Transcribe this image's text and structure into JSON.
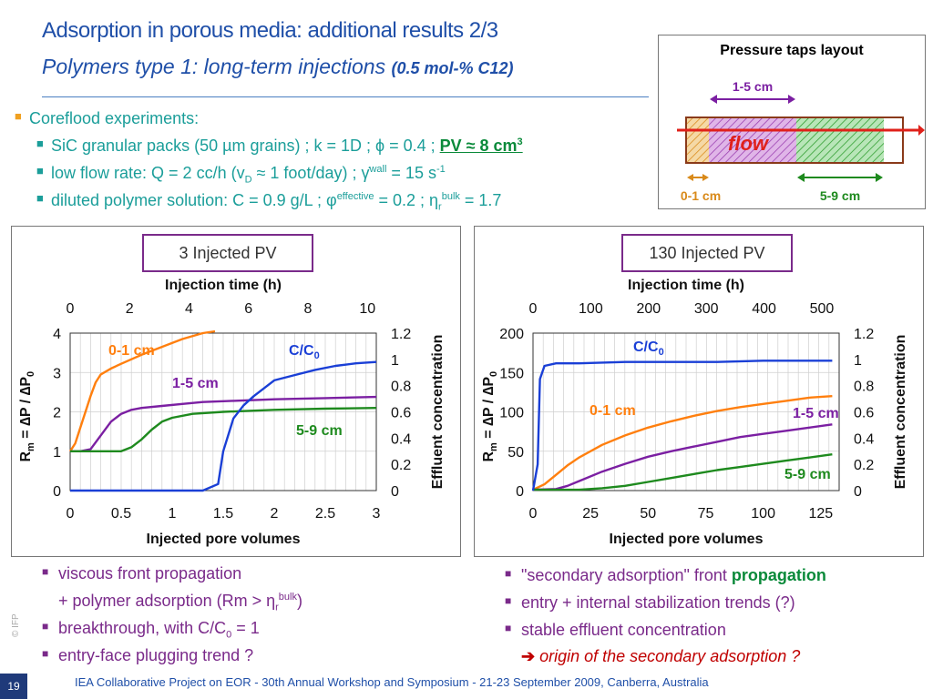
{
  "header": {
    "title": "Adsorption in porous media: additional results 2/3",
    "subtitle_main": "Polymers type 1: long-term injections ",
    "subtitle_small": "(0.5 mol-% C12)"
  },
  "bullets": {
    "b0": "Coreflood experiments:",
    "b1_pre": "SiC granular packs (50 µm grains) ; k = 1D ; ϕ = 0.4 ; ",
    "b1_pv": "PV ≈ 8 cm",
    "b1_pv_sup": "3",
    "b2_pre": "low flow rate: Q = 2 cc/h (v",
    "b2_sub": "D",
    "b2_mid": " ≈ 1 foot/day) ; γ̇",
    "b2_sup": "wall",
    "b2_post": " = 15 s",
    "b2_sup2": "-1",
    "b3_pre": "diluted polymer solution: C = 0.9 g/L ; φ",
    "b3_sup": "effective",
    "b3_mid": " = 0.2 ; η",
    "b3_sub": "r",
    "b3_sup2": "bulk",
    "b3_post": " = 1.7"
  },
  "pressure_taps": {
    "title": "Pressure taps layout",
    "label_top": "1-5 cm",
    "label_flow": "flow",
    "label_left": "0-1 cm",
    "label_right": "5-9 cm"
  },
  "chart_data": [
    {
      "type": "line",
      "panel_label": "3 Injected PV",
      "top_axis_title": "Injection time (h)",
      "top_ticks": [
        "0",
        "2",
        "4",
        "6",
        "8",
        "10"
      ],
      "top_range": [
        0,
        10.3
      ],
      "xlabel": "Injected pore volumes",
      "xlim": [
        0,
        3
      ],
      "xticks": [
        "0",
        "0.5",
        "1",
        "1.5",
        "2",
        "2.5",
        "3"
      ],
      "ylabel": "Rm = ΔP / ΔP0",
      "ylim": [
        0,
        4
      ],
      "yticks": [
        "0",
        "1",
        "2",
        "3",
        "4"
      ],
      "y2label": "Effluent concentration",
      "y2lim": [
        0,
        1.2
      ],
      "y2ticks": [
        "0",
        "0.2",
        "0.4",
        "0.6",
        "0.8",
        "1",
        "1.2"
      ],
      "grid": true,
      "series": [
        {
          "name": "0-1 cm",
          "color": "#ff7f0e",
          "axis": "left",
          "x": [
            0.0,
            0.05,
            0.1,
            0.15,
            0.2,
            0.25,
            0.3,
            0.4,
            0.5,
            0.7,
            0.9,
            1.1,
            1.3,
            1.42
          ],
          "y": [
            1.0,
            1.2,
            1.6,
            2.0,
            2.4,
            2.75,
            2.95,
            3.1,
            3.22,
            3.45,
            3.65,
            3.85,
            4.0,
            4.05
          ]
        },
        {
          "name": "1-5 cm",
          "color": "#7b1fa2",
          "axis": "left",
          "x": [
            0.0,
            0.1,
            0.2,
            0.3,
            0.4,
            0.5,
            0.6,
            0.7,
            0.9,
            1.1,
            1.3,
            1.6,
            2.0,
            2.5,
            3.0
          ],
          "y": [
            1.0,
            1.0,
            1.05,
            1.4,
            1.75,
            1.95,
            2.05,
            2.1,
            2.15,
            2.2,
            2.25,
            2.28,
            2.32,
            2.35,
            2.38
          ]
        },
        {
          "name": "5-9 cm",
          "color": "#1e8a1e",
          "axis": "left",
          "x": [
            0.0,
            0.2,
            0.4,
            0.5,
            0.6,
            0.7,
            0.8,
            0.9,
            1.0,
            1.2,
            1.5,
            2.0,
            2.5,
            3.0
          ],
          "y": [
            1.0,
            1.0,
            1.0,
            1.0,
            1.1,
            1.3,
            1.55,
            1.75,
            1.85,
            1.95,
            2.0,
            2.05,
            2.08,
            2.1
          ]
        },
        {
          "name": "C/C0",
          "color": "#1a3fd6",
          "axis": "right",
          "x": [
            0.0,
            1.3,
            1.45,
            1.5,
            1.6,
            1.7,
            1.8,
            1.9,
            2.0,
            2.2,
            2.4,
            2.6,
            2.8,
            3.0
          ],
          "y": [
            0.0,
            0.0,
            0.05,
            0.3,
            0.55,
            0.65,
            0.72,
            0.78,
            0.84,
            0.88,
            0.92,
            0.95,
            0.97,
            0.98
          ]
        }
      ],
      "annotations": [
        "0-1 cm",
        "1-5 cm",
        "5-9 cm",
        "C/C0"
      ]
    },
    {
      "type": "line",
      "panel_label": "130 Injected PV",
      "top_axis_title": "Injection time (h)",
      "top_ticks": [
        "0",
        "100",
        "200",
        "300",
        "400",
        "500"
      ],
      "top_range": [
        0,
        530
      ],
      "xlabel": "Injected pore volumes",
      "xlim": [
        0,
        133
      ],
      "xticks": [
        "0",
        "25",
        "50",
        "75",
        "100",
        "125"
      ],
      "ylabel": "Rm = ΔP / ΔP0",
      "ylim": [
        0,
        200
      ],
      "yticks": [
        "0",
        "50",
        "100",
        "150",
        "200"
      ],
      "y2label": "Effluent concentration",
      "y2lim": [
        0,
        1.2
      ],
      "y2ticks": [
        "0",
        "0.2",
        "0.4",
        "0.6",
        "0.8",
        "1",
        "1.2"
      ],
      "grid": true,
      "series": [
        {
          "name": "0-1 cm",
          "color": "#ff7f0e",
          "axis": "left",
          "x": [
            0,
            5,
            10,
            15,
            20,
            30,
            40,
            50,
            60,
            70,
            80,
            90,
            100,
            110,
            120,
            130
          ],
          "y": [
            1,
            8,
            20,
            32,
            42,
            58,
            70,
            80,
            88,
            95,
            101,
            106,
            110,
            114,
            118,
            120
          ]
        },
        {
          "name": "1-5 cm",
          "color": "#7b1fa2",
          "axis": "left",
          "x": [
            0,
            10,
            15,
            20,
            30,
            40,
            50,
            60,
            70,
            80,
            90,
            100,
            110,
            120,
            130
          ],
          "y": [
            1,
            2,
            6,
            12,
            24,
            34,
            43,
            50,
            56,
            62,
            68,
            72,
            76,
            80,
            84
          ]
        },
        {
          "name": "5-9 cm",
          "color": "#1e8a1e",
          "axis": "left",
          "x": [
            0,
            20,
            30,
            40,
            50,
            60,
            70,
            80,
            90,
            100,
            110,
            120,
            130
          ],
          "y": [
            1,
            1,
            3,
            6,
            11,
            16,
            21,
            26,
            30,
            34,
            38,
            42,
            46
          ]
        },
        {
          "name": "C/C0",
          "color": "#1a3fd6",
          "axis": "right",
          "x": [
            0,
            2,
            3,
            5,
            10,
            20,
            40,
            60,
            80,
            100,
            120,
            130
          ],
          "y": [
            0,
            0.2,
            0.85,
            0.95,
            0.97,
            0.97,
            0.98,
            0.98,
            0.98,
            0.99,
            0.99,
            0.99
          ]
        }
      ],
      "annotations": [
        "C/C0",
        "0-1 cm",
        "1-5 cm",
        "5-9 cm"
      ]
    }
  ],
  "axis_labels": {
    "ylabel_rm": "R",
    "ylabel_m": "m",
    "ylabel_eq": " = ∆P / ∆P",
    "ylabel_0": "0",
    "cc0_c": "C/C",
    "cc0_0": "0"
  },
  "bottom_left": {
    "l1": "viscous front propagation",
    "l1b_pre": "+ polymer adsorption (Rm > η",
    "l1b_sub": "r",
    "l1b_sup": "bulk",
    "l1b_post": ")",
    "l2_pre": "breakthrough, with C/C",
    "l2_sub": "0",
    "l2_post": " = 1",
    "l3": "entry-face plugging trend ?"
  },
  "bottom_right": {
    "r1_pre": "\"secondary adsorption\" front ",
    "r1_bold": "propagation",
    "r2": "entry + internal stabilization trends (?)",
    "r3": "stable effluent concentration",
    "r4_arrow": "➔",
    "r4_text": " origin of the secondary adsorption ?"
  },
  "footer": {
    "slide_number": "19",
    "text": "IEA Collaborative Project on EOR - 30th Annual Workshop and Symposium - 21-23 September 2009, Canberra, Australia",
    "watermark": "© IFP"
  }
}
